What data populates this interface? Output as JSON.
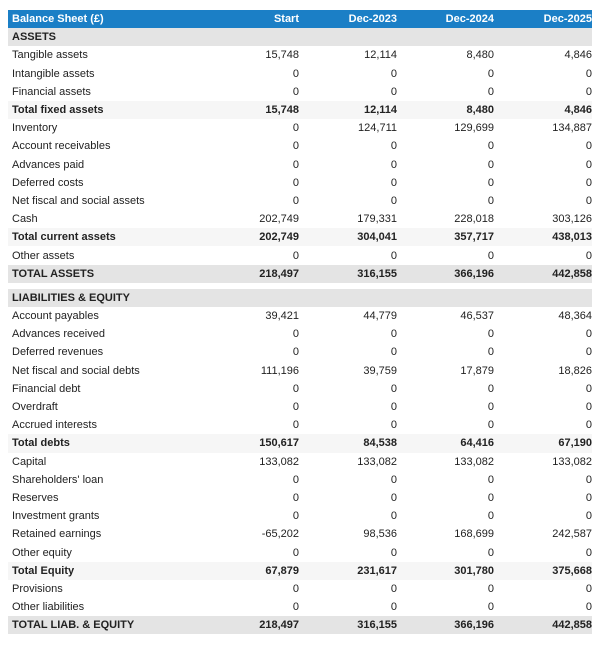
{
  "header": {
    "title": "Balance Sheet (£)",
    "columns": [
      "Start",
      "Dec-2023",
      "Dec-2024",
      "Dec-2025"
    ]
  },
  "colors": {
    "header_bg": "#1b7fc6",
    "section_bg": "#e4e4e4",
    "total_bg": "#f6f6f6"
  },
  "assets": {
    "title": "ASSETS",
    "rows": [
      {
        "label": "Tangible assets",
        "values": [
          "15,748",
          "12,114",
          "8,480",
          "4,846"
        ],
        "type": "normal"
      },
      {
        "label": "Intangible assets",
        "values": [
          "0",
          "0",
          "0",
          "0"
        ],
        "type": "normal"
      },
      {
        "label": "Financial assets",
        "values": [
          "0",
          "0",
          "0",
          "0"
        ],
        "type": "normal"
      },
      {
        "label": "Total fixed assets",
        "values": [
          "15,748",
          "12,114",
          "8,480",
          "4,846"
        ],
        "type": "total"
      },
      {
        "label": "Inventory",
        "values": [
          "0",
          "124,711",
          "129,699",
          "134,887"
        ],
        "type": "normal"
      },
      {
        "label": "Account receivables",
        "values": [
          "0",
          "0",
          "0",
          "0"
        ],
        "type": "normal"
      },
      {
        "label": "Advances paid",
        "values": [
          "0",
          "0",
          "0",
          "0"
        ],
        "type": "normal"
      },
      {
        "label": "Deferred costs",
        "values": [
          "0",
          "0",
          "0",
          "0"
        ],
        "type": "normal"
      },
      {
        "label": "Net fiscal and social assets",
        "values": [
          "0",
          "0",
          "0",
          "0"
        ],
        "type": "normal"
      },
      {
        "label": "Cash",
        "values": [
          "202,749",
          "179,331",
          "228,018",
          "303,126"
        ],
        "type": "normal"
      },
      {
        "label": "Total current assets",
        "values": [
          "202,749",
          "304,041",
          "357,717",
          "438,013"
        ],
        "type": "total"
      },
      {
        "label": "Other assets",
        "values": [
          "0",
          "0",
          "0",
          "0"
        ],
        "type": "normal"
      },
      {
        "label": "TOTAL ASSETS",
        "values": [
          "218,497",
          "316,155",
          "366,196",
          "442,858"
        ],
        "type": "grand"
      }
    ]
  },
  "liabilities": {
    "title": "LIABILITIES & EQUITY",
    "rows": [
      {
        "label": "Account payables",
        "values": [
          "39,421",
          "44,779",
          "46,537",
          "48,364"
        ],
        "type": "normal"
      },
      {
        "label": "Advances received",
        "values": [
          "0",
          "0",
          "0",
          "0"
        ],
        "type": "normal"
      },
      {
        "label": "Deferred revenues",
        "values": [
          "0",
          "0",
          "0",
          "0"
        ],
        "type": "normal"
      },
      {
        "label": "Net fiscal and social debts",
        "values": [
          "111,196",
          "39,759",
          "17,879",
          "18,826"
        ],
        "type": "normal"
      },
      {
        "label": "Financial debt",
        "values": [
          "0",
          "0",
          "0",
          "0"
        ],
        "type": "normal"
      },
      {
        "label": "Overdraft",
        "values": [
          "0",
          "0",
          "0",
          "0"
        ],
        "type": "normal"
      },
      {
        "label": "Accrued interests",
        "values": [
          "0",
          "0",
          "0",
          "0"
        ],
        "type": "normal"
      },
      {
        "label": "Total debts",
        "values": [
          "150,617",
          "84,538",
          "64,416",
          "67,190"
        ],
        "type": "total"
      },
      {
        "label": "Capital",
        "values": [
          "133,082",
          "133,082",
          "133,082",
          "133,082"
        ],
        "type": "normal"
      },
      {
        "label": "Shareholders' loan",
        "values": [
          "0",
          "0",
          "0",
          "0"
        ],
        "type": "normal"
      },
      {
        "label": "Reserves",
        "values": [
          "0",
          "0",
          "0",
          "0"
        ],
        "type": "normal"
      },
      {
        "label": "Investment grants",
        "values": [
          "0",
          "0",
          "0",
          "0"
        ],
        "type": "normal"
      },
      {
        "label": "Retained earnings",
        "values": [
          "-65,202",
          "98,536",
          "168,699",
          "242,587"
        ],
        "type": "normal"
      },
      {
        "label": "Other equity",
        "values": [
          "0",
          "0",
          "0",
          "0"
        ],
        "type": "normal"
      },
      {
        "label": "Total Equity",
        "values": [
          "67,879",
          "231,617",
          "301,780",
          "375,668"
        ],
        "type": "total"
      },
      {
        "label": "Provisions",
        "values": [
          "0",
          "0",
          "0",
          "0"
        ],
        "type": "normal"
      },
      {
        "label": "Other liabilities",
        "values": [
          "0",
          "0",
          "0",
          "0"
        ],
        "type": "normal"
      },
      {
        "label": "TOTAL LIAB. & EQUITY",
        "values": [
          "218,497",
          "316,155",
          "366,196",
          "442,858"
        ],
        "type": "grand"
      }
    ]
  }
}
